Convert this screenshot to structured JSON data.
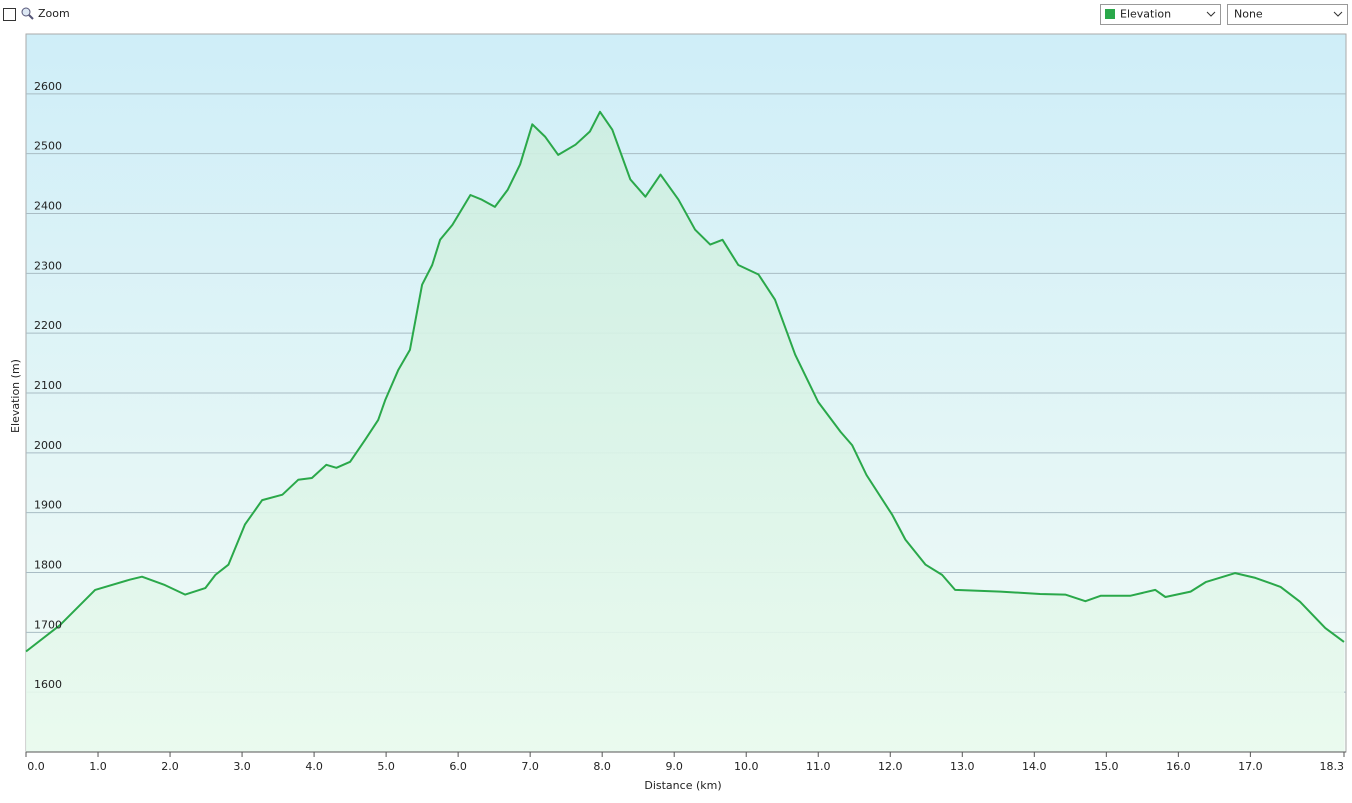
{
  "ui": {
    "zoom_label": "Zoom",
    "secondary_select": "None"
  },
  "chart_data": {
    "type": "area-line",
    "x_label": "Distance  (km)",
    "y_label": "Elevation (m)",
    "x": [
      0,
      0.47,
      0.96,
      1.44,
      1.61,
      1.93,
      2.21,
      2.49,
      2.63,
      2.81,
      3.04,
      3.28,
      3.56,
      3.78,
      3.97,
      4.17,
      4.31,
      4.5,
      4.71,
      4.89,
      4.99,
      5.17,
      5.33,
      5.5,
      5.64,
      5.75,
      5.92,
      6.17,
      6.33,
      6.51,
      6.69,
      6.86,
      7.03,
      7.21,
      7.39,
      7.63,
      7.83,
      7.97,
      8.14,
      8.39,
      8.6,
      8.81,
      9.06,
      9.29,
      9.5,
      9.67,
      9.89,
      10.17,
      10.4,
      10.68,
      11.0,
      11.31,
      11.47,
      11.67,
      12.03,
      12.21,
      12.49,
      12.72,
      12.9,
      13.53,
      14.08,
      14.43,
      14.71,
      14.92,
      15.33,
      15.68,
      15.82,
      16.17,
      16.38,
      16.79,
      17.07,
      17.42,
      17.69,
      18.04,
      18.3
    ],
    "series": [
      {
        "name": "Elevation",
        "color": "#2aa84a",
        "values": [
          1668,
          1712,
          1771,
          1788,
          1793,
          1779,
          1763,
          1774,
          1796,
          1813,
          1880,
          1921,
          1930,
          1955,
          1958,
          1980,
          1975,
          1985,
          2022,
          2055,
          2089,
          2139,
          2172,
          2281,
          2314,
          2356,
          2381,
          2431,
          2423,
          2411,
          2440,
          2482,
          2549,
          2528,
          2498,
          2515,
          2537,
          2570,
          2540,
          2457,
          2428,
          2465,
          2423,
          2373,
          2348,
          2356,
          2314,
          2298,
          2256,
          2164,
          2085,
          2035,
          2013,
          1963,
          1896,
          1855,
          1813,
          1796,
          1771,
          1768,
          1764,
          1763,
          1752,
          1761,
          1761,
          1771,
          1759,
          1768,
          1784,
          1799,
          1791,
          1776,
          1751,
          1707,
          1684
        ]
      }
    ],
    "xlim": [
      0,
      18.3
    ],
    "xticks": [
      {
        "value": 0,
        "label": "0.0"
      },
      {
        "value": 1,
        "label": "1.0"
      },
      {
        "value": 2,
        "label": "2.0"
      },
      {
        "value": 3,
        "label": "3.0"
      },
      {
        "value": 4,
        "label": "4.0"
      },
      {
        "value": 5,
        "label": "5.0"
      },
      {
        "value": 6,
        "label": "6.0"
      },
      {
        "value": 7,
        "label": "7.0"
      },
      {
        "value": 8,
        "label": "8.0"
      },
      {
        "value": 9,
        "label": "9.0"
      },
      {
        "value": 10,
        "label": "10.0"
      },
      {
        "value": 11,
        "label": "11.0"
      },
      {
        "value": 12,
        "label": "12.0"
      },
      {
        "value": 13,
        "label": "13.0"
      },
      {
        "value": 14,
        "label": "14.0"
      },
      {
        "value": 15,
        "label": "15.0"
      },
      {
        "value": 16,
        "label": "16.0"
      },
      {
        "value": 17,
        "label": "17.0"
      },
      18.3
    ],
    "ylim": [
      1500,
      2700
    ],
    "yticks": [
      1600,
      1700,
      1800,
      1900,
      2000,
      2100,
      2200,
      2300,
      2400,
      2500,
      2600
    ],
    "grid": true
  }
}
